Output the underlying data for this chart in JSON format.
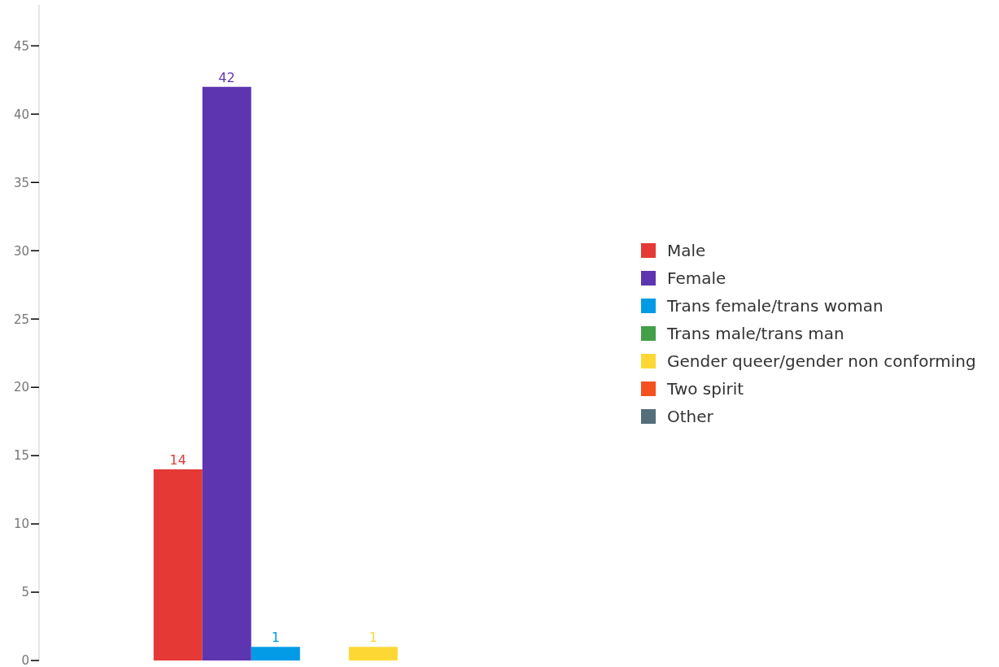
{
  "chart_data": {
    "type": "bar",
    "categories": [
      null
    ],
    "series": [
      {
        "name": "Male",
        "color": "#e53935",
        "values": [
          14
        ],
        "value_labels": [
          "14"
        ]
      },
      {
        "name": "Female",
        "color": "#5e35b1",
        "values": [
          42
        ],
        "value_labels": [
          "42"
        ]
      },
      {
        "name": "Trans female/trans woman",
        "color": "#039be5",
        "values": [
          1
        ],
        "value_labels": [
          "1"
        ]
      },
      {
        "name": "Trans male/trans man",
        "color": "#43a047",
        "values": [
          0
        ],
        "value_labels": [
          null
        ]
      },
      {
        "name": "Gender queer/gender non conforming",
        "color": "#fdd835",
        "values": [
          1
        ],
        "value_labels": [
          "1"
        ]
      },
      {
        "name": "Two spirit",
        "color": "#f4511e",
        "values": [
          0
        ],
        "value_labels": [
          null
        ]
      },
      {
        "name": "Other",
        "color": "#546e7a",
        "values": [
          0
        ],
        "value_labels": [
          null
        ]
      }
    ],
    "ylim": [
      0,
      48
    ],
    "yticks": [
      0,
      5,
      10,
      15,
      20,
      25,
      30,
      35,
      40,
      45
    ],
    "legend": "right"
  }
}
